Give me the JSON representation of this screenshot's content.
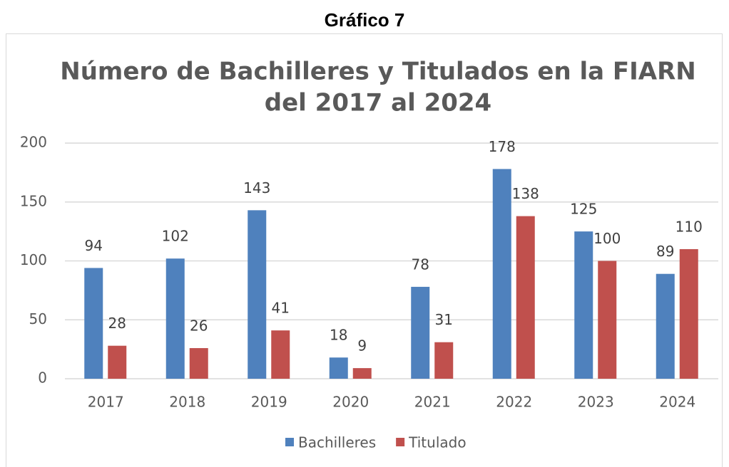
{
  "heading": "Gráfico 7",
  "chart_data": {
    "type": "bar",
    "title": [
      "Número de Bachilleres y Titulados en la FIARN",
      "del 2017 al 2024"
    ],
    "categories": [
      "2017",
      "2018",
      "2019",
      "2020",
      "2021",
      "2022",
      "2023",
      "2024"
    ],
    "series": [
      {
        "name": "Bachilleres",
        "color": "#4f81bd",
        "values": [
          94,
          102,
          143,
          18,
          78,
          178,
          125,
          89
        ]
      },
      {
        "name": "Titulado",
        "color": "#c0504d",
        "values": [
          28,
          26,
          41,
          9,
          31,
          138,
          100,
          110
        ]
      }
    ],
    "ylim": [
      0,
      200
    ],
    "yticks": [
      0,
      50,
      100,
      150,
      200
    ],
    "grid": true,
    "legend": "bottom"
  }
}
